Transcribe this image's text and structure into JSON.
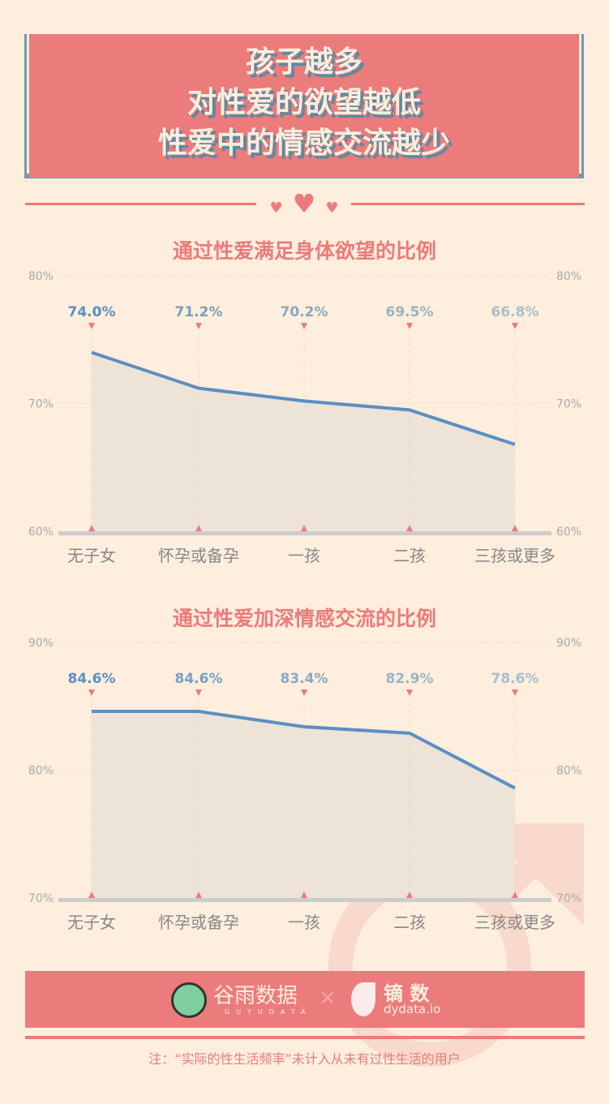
{
  "header": {
    "title_lines": [
      "孩子越多",
      "对性爱的欲望越低",
      "性爱中的情感交流越少"
    ]
  },
  "chart_data": [
    {
      "type": "area",
      "title": "通过性爱满足身体欲望的比例",
      "categories": [
        "无子女",
        "怀孕或备孕",
        "一孩",
        "二孩",
        "三孩或更多"
      ],
      "values": [
        74.0,
        71.2,
        70.2,
        69.5,
        66.8
      ],
      "data_labels": [
        "74.0%",
        "71.2%",
        "70.2%",
        "69.5%",
        "66.8%"
      ],
      "ylim": [
        60,
        80
      ],
      "yticks": [
        "60%",
        "70%",
        "80%"
      ],
      "line_color": "#5b8fc3",
      "fill_color": "#ede4d7",
      "grid": true
    },
    {
      "type": "area",
      "title": "通过性爱加深情感交流的比例",
      "categories": [
        "无子女",
        "怀孕或备孕",
        "一孩",
        "二孩",
        "三孩或更多"
      ],
      "values": [
        84.6,
        84.6,
        83.4,
        82.9,
        78.6
      ],
      "data_labels": [
        "84.6%",
        "84.6%",
        "83.4%",
        "82.9%",
        "78.6%"
      ],
      "ylim": [
        70,
        90
      ],
      "yticks": [
        "70%",
        "80%",
        "90%"
      ],
      "line_color": "#5b8fc3",
      "fill_color": "#ede4d7",
      "grid": true
    }
  ],
  "footer": {
    "logo1": "谷雨数据",
    "logo1_sub": "GUYUDATA",
    "separator": "×",
    "logo2": "镝 数",
    "logo2_sub": "dydata.io",
    "note": "注：“实际的性生活频率”未计入从未有过性生活的用户"
  },
  "colors": {
    "accent": "#ec7b7c",
    "background": "#fdeedd",
    "shadow": "#5f8aa0"
  }
}
